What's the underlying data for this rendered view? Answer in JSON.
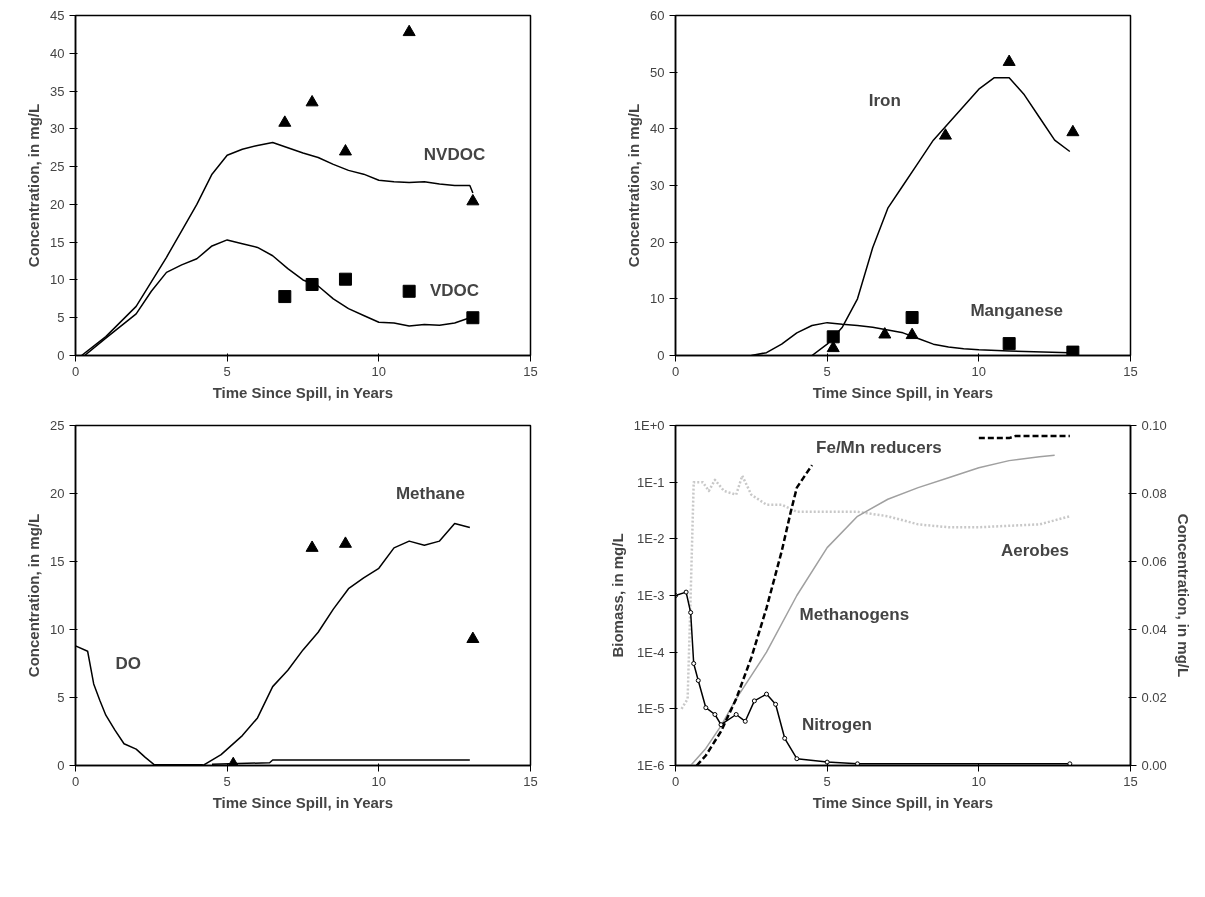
{
  "chart_data": [
    {
      "type": "line",
      "xlabel": "Time Since Spill, in Years",
      "ylabel": "Concentration, in mg/L",
      "xlim": [
        0,
        15
      ],
      "ylim": [
        0,
        45
      ],
      "xticks": [
        0,
        5,
        10,
        15
      ],
      "yticks": [
        0,
        5,
        10,
        15,
        20,
        25,
        30,
        35,
        40,
        45
      ],
      "grid": false,
      "series": [
        {
          "color": "#000000",
          "x": [
            0.2,
            1,
            2,
            3,
            3.5,
            4,
            4.5,
            5,
            5.5,
            6,
            6.5,
            7,
            7.5,
            8,
            8.5,
            9,
            9.5,
            10,
            10.5,
            11,
            11.5,
            12,
            12.5,
            13,
            13.1
          ],
          "values": [
            0,
            2.5,
            6.5,
            13,
            16.5,
            20,
            24,
            26.5,
            27.3,
            27.8,
            28.2,
            27.5,
            26.8,
            26.2,
            25.3,
            24.5,
            24,
            23.2,
            23,
            22.9,
            23,
            22.7,
            22.5,
            22.5,
            21.5
          ]
        },
        {
          "color": "#000000",
          "x": [
            0.3,
            1,
            2,
            2.5,
            3,
            3.5,
            4,
            4.5,
            5,
            5.5,
            6,
            6.5,
            7,
            7.5,
            8,
            8.5,
            9,
            9.5,
            10,
            10.5,
            11,
            11.5,
            12,
            12.5,
            13
          ],
          "values": [
            0,
            2.3,
            5.5,
            8.5,
            11,
            12,
            12.8,
            14.5,
            15.3,
            14.8,
            14.3,
            13.2,
            11.5,
            10,
            9.2,
            7.5,
            6.2,
            5.3,
            4.4,
            4.3,
            3.9,
            4.1,
            4,
            4.3,
            5
          ]
        },
        {
          "type": "scatter",
          "marker": "triangle",
          "color": "#000000",
          "x": [
            6.9,
            7.8,
            8.9,
            11,
            13.1
          ],
          "values": [
            30.8,
            33.5,
            27,
            42.8,
            20.4
          ]
        },
        {
          "type": "scatter",
          "marker": "square",
          "color": "#000000",
          "x": [
            6.9,
            7.8,
            8.9,
            11,
            13.1
          ],
          "values": [
            7.8,
            9.4,
            10.1,
            8.5,
            5.0
          ]
        }
      ],
      "annotations": [
        "NVDOC",
        "VDOC"
      ]
    },
    {
      "type": "line",
      "xlabel": "Time Since Spill, in Years",
      "ylabel": "Concentration, in mg/L",
      "xlim": [
        0,
        15
      ],
      "ylim": [
        0,
        60
      ],
      "xticks": [
        0,
        5,
        10,
        15
      ],
      "yticks": [
        0,
        10,
        20,
        30,
        40,
        50,
        60
      ],
      "grid": false,
      "series": [
        {
          "color": "#000000",
          "x": [
            4.5,
            5,
            5.5,
            6,
            6.5,
            7,
            7.5,
            8,
            8.5,
            9,
            9.5,
            10,
            10.5,
            11,
            11.5,
            12,
            12.5,
            13
          ],
          "values": [
            0,
            2,
            5,
            10,
            19,
            26,
            30,
            34,
            38,
            41,
            44,
            47,
            49,
            49,
            46,
            42,
            38,
            36
          ]
        },
        {
          "color": "#000000",
          "x": [
            2.5,
            3,
            3.5,
            4,
            4.5,
            5,
            5.5,
            6,
            6.5,
            7,
            7.5,
            8,
            8.5,
            9,
            9.5,
            10,
            11,
            13
          ],
          "values": [
            0,
            0.5,
            2,
            4,
            5.3,
            5.8,
            5.5,
            5.3,
            5,
            4.5,
            4,
            3,
            2,
            1.5,
            1.2,
            1,
            0.8,
            0.5
          ]
        },
        {
          "type": "scatter",
          "marker": "triangle",
          "color": "#000000",
          "x": [
            5.2,
            6.9,
            7.8,
            8.9,
            11,
            13.1
          ],
          "values": [
            1.3,
            3.7,
            3.6,
            38.8,
            51.8,
            39.4
          ]
        },
        {
          "type": "scatter",
          "marker": "square",
          "color": "#000000",
          "x": [
            5.2,
            7.8,
            11,
            13.1
          ],
          "values": [
            3.3,
            6.7,
            2.1,
            0.6
          ]
        }
      ],
      "annotations": [
        "Iron",
        "Manganese"
      ]
    },
    {
      "type": "line",
      "xlabel": "Time Since Spill, in Years",
      "ylabel": "Concentration, in mg/L",
      "xlim": [
        0,
        15
      ],
      "ylim": [
        0,
        25
      ],
      "xticks": [
        0,
        5,
        10,
        15
      ],
      "yticks": [
        0,
        5,
        10,
        15,
        20,
        25
      ],
      "grid": false,
      "series": [
        {
          "color": "#000000",
          "x": [
            0,
            0.4,
            0.6,
            0.8,
            1,
            1.3,
            1.6,
            2,
            2.3,
            2.6,
            4.2
          ],
          "values": [
            8.8,
            8.4,
            6,
            4.8,
            3.7,
            2.6,
            1.6,
            1.2,
            0.6,
            0.05,
            0.05
          ]
        },
        {
          "color": "#000000",
          "x": [
            4.2,
            4.8,
            5.5,
            6,
            6.5,
            7,
            7.5,
            8,
            8.5,
            9,
            9.5,
            10,
            10.5,
            11,
            11.5,
            12,
            12.5,
            13
          ],
          "values": [
            0,
            0.8,
            2.2,
            3.5,
            5.8,
            7,
            8.5,
            9.8,
            11.5,
            13,
            13.8,
            14.5,
            16,
            16.5,
            16.2,
            16.5,
            17.8,
            17.5
          ]
        },
        {
          "color": "#000000",
          "x": [
            4.5,
            6.4,
            6.5,
            13
          ],
          "values": [
            0.1,
            0.2,
            0.4,
            0.4
          ]
        },
        {
          "type": "scatter",
          "marker": "triangle",
          "color": "#000000",
          "x": [
            5.2,
            7.8,
            8.9,
            13.1
          ],
          "values": [
            0.1,
            16,
            16.3,
            9.3
          ]
        }
      ],
      "annotations": [
        "DO",
        "Methane"
      ]
    },
    {
      "type": "line",
      "xlabel": "Time Since Spill, in Years",
      "ylabel": "Biomass, in mg/L",
      "y2label": "Concentration, in mg/L",
      "log": "y",
      "xlim": [
        0,
        15
      ],
      "ylim": [
        1e-06,
        1
      ],
      "xticks": [
        0,
        5,
        10,
        15
      ],
      "yticks": [
        {
          "value": 1e-06,
          "label": "1E-6"
        },
        {
          "value": 1e-05,
          "label": "1E-5"
        },
        {
          "value": 0.0001,
          "label": "1E-4"
        },
        {
          "value": 0.001,
          "label": "1E-3"
        },
        {
          "value": 0.01,
          "label": "1E-2"
        },
        {
          "value": 0.1,
          "label": "1E-1"
        },
        {
          "value": 1,
          "label": "1E+0"
        }
      ],
      "y2lim": [
        0,
        0.1
      ],
      "y2ticks": [
        {
          "value": 0,
          "label": "0.00"
        },
        {
          "value": 0.02,
          "label": "0.02"
        },
        {
          "value": 0.04,
          "label": "0.04"
        },
        {
          "value": 0.06,
          "label": "0.06"
        },
        {
          "value": 0.08,
          "label": "0.08"
        },
        {
          "value": 0.1,
          "label": "0.10"
        }
      ],
      "grid": false,
      "series": [
        {
          "color": "#c8c8c8",
          "line_style": "dotted",
          "x": [
            0.2,
            0.4,
            0.5,
            0.6,
            0.9,
            1.1,
            1.3,
            1.6,
            2,
            2.2,
            2.5,
            3,
            3.5,
            4,
            5,
            6,
            7,
            8,
            9,
            10,
            11,
            12,
            13
          ],
          "values": [
            1e-05,
            1.5e-05,
            0.001,
            0.1,
            0.1,
            0.07,
            0.11,
            0.07,
            0.06,
            0.13,
            0.06,
            0.04,
            0.04,
            0.03,
            0.03,
            0.03,
            0.025,
            0.018,
            0.016,
            0.016,
            0.017,
            0.018,
            0.025
          ]
        },
        {
          "color": "#a0a0a0",
          "x": [
            0.5,
            1,
            1.5,
            2,
            3,
            4,
            5,
            6,
            7,
            8,
            9,
            10,
            11,
            12,
            12.5
          ],
          "values": [
            1e-06,
            2e-06,
            5e-06,
            1.5e-05,
            0.0001,
            0.001,
            0.007,
            0.025,
            0.05,
            0.08,
            0.12,
            0.18,
            0.24,
            0.28,
            0.3
          ]
        },
        {
          "color": "#000000",
          "line_style": "dashed",
          "x": [
            0.7,
            1,
            1.5,
            2,
            2.5,
            3,
            3.5,
            3.8,
            4,
            4.5,
            7,
            10,
            11,
            11.2,
            13
          ],
          "values": [
            1e-06,
            1.5e-06,
            4e-06,
            1.5e-05,
            8e-05,
            0.0006,
            0.006,
            0.03,
            0.08,
            0.2,
            null,
            0.6,
            0.6,
            0.65,
            0.65
          ]
        },
        {
          "axis": "y2",
          "type": "line",
          "color": "#000000",
          "marker": "circle",
          "x": [
            0,
            0.35,
            0.5,
            0.6,
            0.75,
            1,
            1.3,
            1.5,
            2,
            2.3,
            2.6,
            3,
            3.3,
            3.6,
            4,
            5,
            6,
            13
          ],
          "values": [
            0.05,
            0.051,
            0.045,
            0.03,
            0.025,
            0.017,
            0.015,
            0.012,
            0.015,
            0.013,
            0.019,
            0.021,
            0.018,
            0.008,
            0.002,
            0.001,
            0.0005,
            0.0005
          ]
        }
      ],
      "annotations": [
        "Fe/Mn reducers",
        "Aerobes",
        "Methanogens",
        "Nitrogen"
      ]
    }
  ]
}
